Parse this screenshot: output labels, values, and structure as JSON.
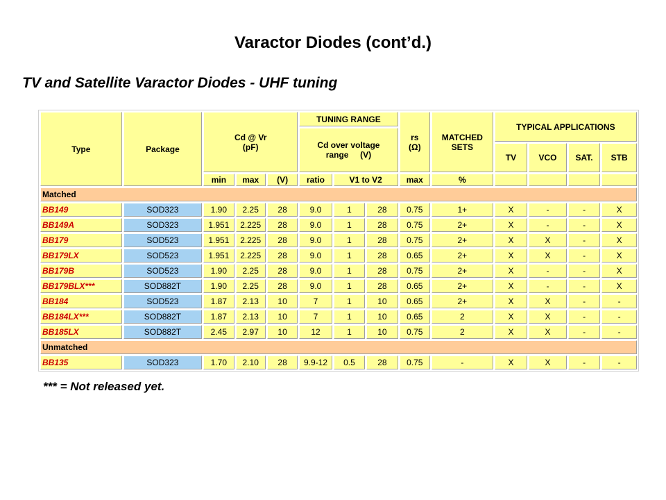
{
  "title": "Varactor Diodes (cont’d.)",
  "subtitle": "TV and Satellite Varactor Diodes - UHF tuning",
  "table": {
    "header": {
      "type": "Type",
      "package": "Package",
      "cd_vr": [
        "Cd @ Vr",
        "(pF)"
      ],
      "tuning_range": "TUNING RANGE",
      "cd_over_voltage": [
        "Cd over voltage",
        "range     (V)"
      ],
      "rs": [
        "rs",
        "(Ω)"
      ],
      "matched_sets": [
        "MATCHED",
        "SETS"
      ],
      "typical_applications": "TYPICAL APPLICATIONS",
      "applications": [
        "TV",
        "VCO",
        "SAT.",
        "STB"
      ],
      "units": [
        "min",
        "max",
        "(V)",
        "ratio",
        "V1 to V2",
        "max",
        "%"
      ]
    },
    "groups": [
      {
        "label": "Matched",
        "rows": [
          [
            "BB149",
            "SOD323",
            "1.90",
            "2.25",
            "28",
            "9.0",
            "1",
            "28",
            "0.75",
            "1+",
            "X",
            "-",
            "-",
            "X"
          ],
          [
            "BB149A",
            "SOD323",
            "1.951",
            "2.225",
            "28",
            "9.0",
            "1",
            "28",
            "0.75",
            "2+",
            "X",
            "-",
            "-",
            "X"
          ],
          [
            "BB179",
            "SOD523",
            "1.951",
            "2.225",
            "28",
            "9.0",
            "1",
            "28",
            "0.75",
            "2+",
            "X",
            "X",
            "-",
            "X"
          ],
          [
            "BB179LX",
            "SOD523",
            "1.951",
            "2.225",
            "28",
            "9.0",
            "1",
            "28",
            "0.65",
            "2+",
            "X",
            "X",
            "-",
            "X"
          ],
          [
            "BB179B",
            "SOD523",
            "1.90",
            "2.25",
            "28",
            "9.0",
            "1",
            "28",
            "0.75",
            "2+",
            "X",
            "-",
            "-",
            "X"
          ],
          [
            "BB179BLX***",
            "SOD882T",
            "1.90",
            "2.25",
            "28",
            "9.0",
            "1",
            "28",
            "0.65",
            "2+",
            "X",
            "-",
            "-",
            "X"
          ],
          [
            "BB184",
            "SOD523",
            "1.87",
            "2.13",
            "10",
            "7",
            "1",
            "10",
            "0.65",
            "2+",
            "X",
            "X",
            "-",
            "-"
          ],
          [
            "BB184LX***",
            "SOD882T",
            "1.87",
            "2.13",
            "10",
            "7",
            "1",
            "10",
            "0.65",
            "2",
            "X",
            "X",
            "-",
            "-"
          ],
          [
            "BB185LX",
            "SOD882T",
            "2.45",
            "2.97",
            "10",
            "12",
            "1",
            "10",
            "0.75",
            "2",
            "X",
            "X",
            "-",
            "-"
          ]
        ]
      },
      {
        "label": "Unmatched",
        "rows": [
          [
            "BB135",
            "SOD323",
            "1.70",
            "2.10",
            "28",
            "9.9-12",
            "0.5",
            "28",
            "0.75",
            "-",
            "X",
            "X",
            "-",
            "-"
          ]
        ]
      }
    ]
  },
  "footnote": "*** = Not released yet."
}
